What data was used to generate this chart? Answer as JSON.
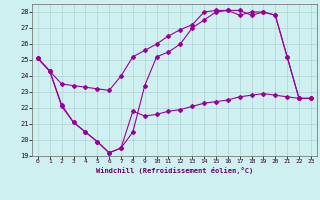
{
  "xlabel": "Windchill (Refroidissement éolien,°C)",
  "background_color": "#cff0f0",
  "line_color": "#990099",
  "xlim": [
    -0.5,
    23.5
  ],
  "ylim": [
    19,
    28.5
  ],
  "yticks": [
    19,
    20,
    21,
    22,
    23,
    24,
    25,
    26,
    27,
    28
  ],
  "xticks": [
    0,
    1,
    2,
    3,
    4,
    5,
    6,
    7,
    8,
    9,
    10,
    11,
    12,
    13,
    14,
    15,
    16,
    17,
    18,
    19,
    20,
    21,
    22,
    23
  ],
  "series1_x": [
    0,
    1,
    2,
    3,
    4,
    5,
    6,
    7,
    8,
    9,
    10,
    11,
    12,
    13,
    14,
    15,
    16,
    17,
    18,
    19,
    20,
    21,
    22,
    23
  ],
  "series1_y": [
    25.1,
    24.3,
    22.1,
    21.1,
    20.5,
    19.9,
    19.2,
    19.5,
    21.8,
    21.5,
    21.6,
    21.8,
    21.9,
    22.1,
    22.3,
    22.4,
    22.5,
    22.7,
    22.8,
    22.9,
    22.8,
    22.7,
    22.6,
    22.6
  ],
  "series2_x": [
    0,
    1,
    2,
    3,
    4,
    5,
    6,
    7,
    8,
    9,
    10,
    11,
    12,
    13,
    14,
    15,
    16,
    17,
    18,
    19,
    20,
    21,
    22,
    23
  ],
  "series2_y": [
    25.1,
    24.3,
    22.2,
    21.1,
    20.5,
    19.9,
    19.2,
    19.5,
    20.5,
    23.4,
    25.2,
    25.5,
    26.0,
    27.0,
    27.5,
    28.0,
    28.1,
    28.1,
    27.8,
    28.0,
    27.8,
    25.2,
    22.6,
    22.6
  ],
  "series3_x": [
    0,
    1,
    2,
    3,
    4,
    5,
    6,
    7,
    8,
    9,
    10,
    11,
    12,
    13,
    14,
    15,
    16,
    17,
    18,
    19,
    20,
    21,
    22,
    23
  ],
  "series3_y": [
    25.1,
    24.3,
    23.5,
    23.4,
    23.3,
    23.2,
    23.1,
    24.0,
    25.2,
    25.6,
    26.0,
    26.5,
    26.9,
    27.2,
    28.0,
    28.1,
    28.1,
    27.8,
    28.0,
    28.0,
    27.8,
    25.2,
    22.6,
    22.6
  ]
}
